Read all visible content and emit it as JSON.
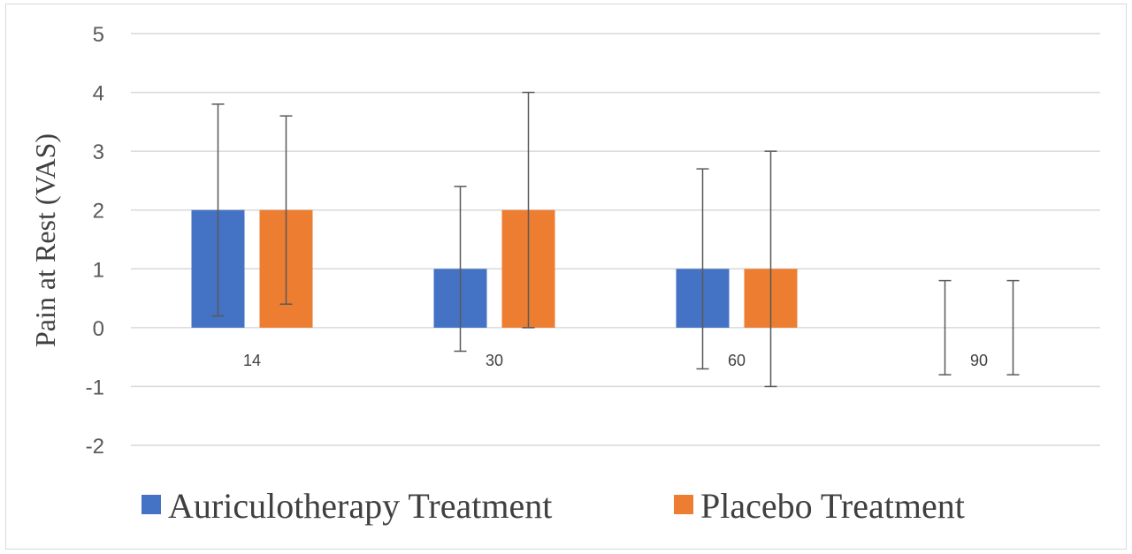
{
  "chart_data": {
    "type": "bar",
    "title": "",
    "xlabel": "",
    "ylabel": "Pain at Rest (VAS)",
    "ylim": [
      -2,
      5
    ],
    "yticks": [
      5,
      4,
      3,
      2,
      1,
      0,
      -1,
      -2
    ],
    "grid": true,
    "legend_position": "bottom",
    "categories": [
      "14",
      "30",
      "60",
      "90"
    ],
    "series": [
      {
        "name": "Auriculotherapy Treatment",
        "color": "#4472c4",
        "values": [
          2,
          1,
          1,
          0
        ],
        "error_low": [
          0.2,
          -0.4,
          -0.7,
          -0.8
        ],
        "error_high": [
          3.8,
          2.4,
          2.7,
          0.8
        ]
      },
      {
        "name": "Placebo Treatment",
        "color": "#ed7d31",
        "values": [
          2,
          2,
          1,
          0
        ],
        "error_low": [
          0.4,
          0.0,
          -1.0,
          -0.8
        ],
        "error_high": [
          3.6,
          4.0,
          3.0,
          0.8
        ]
      }
    ]
  }
}
